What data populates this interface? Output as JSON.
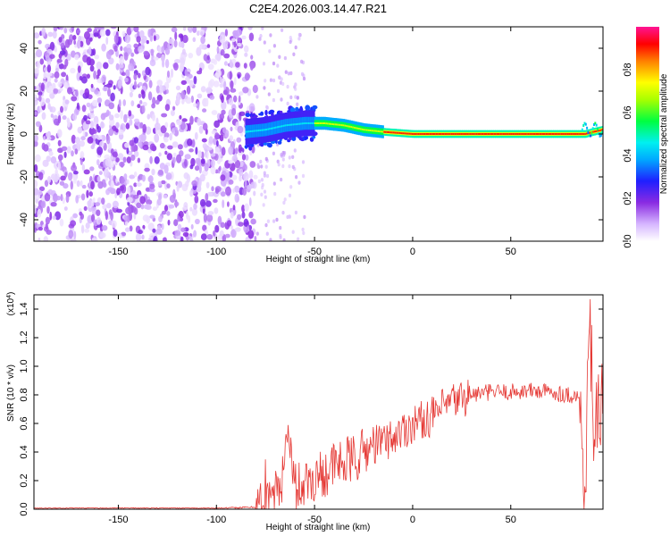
{
  "title": "C2E4.2026.003.14.47.R21",
  "chart_data": [
    {
      "type": "heatmap",
      "name": "spectrogram",
      "xlabel": "Height of straight line (km)",
      "ylabel": "Frequency (Hz)",
      "xlim": [
        -193,
        97
      ],
      "ylim": [
        -50,
        50
      ],
      "xticks": [
        -150,
        -100,
        -50,
        0,
        50
      ],
      "yticks": [
        -40,
        -20,
        0,
        20,
        40
      ],
      "colorbar": {
        "label": "Normalized spectral amplitude",
        "range": [
          0,
          1
        ],
        "ticks": [
          0.0,
          0.2,
          0.4,
          0.6,
          0.8
        ],
        "colors": [
          "#ffffff",
          "#c89bff",
          "#8a2be2",
          "#0000ff",
          "#00e5ff",
          "#00ff00",
          "#ffff00",
          "#ff0000",
          "#ff1493"
        ]
      },
      "noise_region_x": [
        -193,
        -80
      ],
      "signal_track": {
        "x": [
          -85,
          -75,
          -65,
          -55,
          -45,
          -35,
          -25,
          -15,
          0,
          25,
          50,
          75,
          88,
          92,
          97
        ],
        "freq": [
          1,
          2,
          4,
          5,
          5,
          4,
          2,
          1,
          0,
          0,
          0,
          0,
          0,
          1,
          2
        ]
      }
    },
    {
      "type": "line",
      "name": "snr",
      "xlabel": "Height of straight line (km)",
      "ylabel": "SNR (10 * v/v)",
      "y_multiplier": "(x10",
      "y_exponent": "4",
      "y_multiplier_close": ")",
      "xlim": [
        -193,
        97
      ],
      "ylim": [
        0,
        1.5
      ],
      "xticks": [
        -150,
        -100,
        -50,
        0,
        50
      ],
      "yticks": [
        0.0,
        0.2,
        0.4,
        0.6,
        0.8,
        1.0,
        1.2,
        1.4
      ],
      "line_color": "#e53935",
      "series_envelope": {
        "x": [
          -193,
          -100,
          -80,
          -70,
          -66,
          -63,
          -60,
          -50,
          -40,
          -30,
          -20,
          -10,
          0,
          10,
          20,
          30,
          40,
          50,
          60,
          70,
          80,
          85,
          88,
          90,
          92,
          95,
          97
        ],
        "y": [
          0.0,
          0.0,
          0.02,
          0.08,
          0.25,
          0.5,
          0.15,
          0.22,
          0.3,
          0.35,
          0.45,
          0.5,
          0.6,
          0.65,
          0.75,
          0.8,
          0.82,
          0.82,
          0.83,
          0.82,
          0.8,
          0.78,
          0.05,
          1.45,
          0.6,
          0.6,
          0.75
        ]
      }
    }
  ]
}
